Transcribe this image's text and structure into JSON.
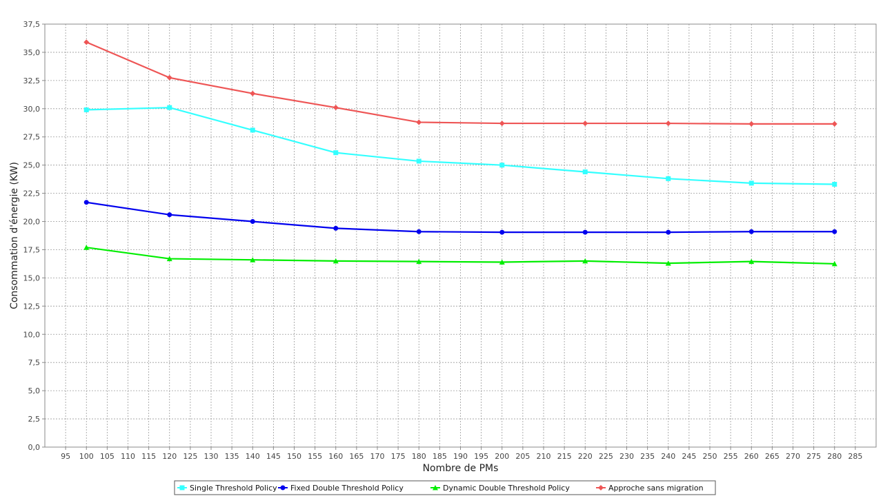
{
  "chart_data": {
    "type": "line",
    "title": "",
    "xlabel": "Nombre de PMs",
    "ylabel": "Consommation d'énergie (KW)",
    "xlim": [
      90,
      290
    ],
    "ylim": [
      0,
      37.5
    ],
    "x_ticks": [
      "95",
      "100",
      "105",
      "110",
      "115",
      "120",
      "125",
      "130",
      "135",
      "140",
      "145",
      "150",
      "155",
      "160",
      "165",
      "170",
      "175",
      "180",
      "185",
      "190",
      "195",
      "200",
      "205",
      "210",
      "215",
      "220",
      "225",
      "230",
      "235",
      "240",
      "245",
      "250",
      "255",
      "260",
      "265",
      "270",
      "275",
      "280",
      "285"
    ],
    "y_ticks": [
      "0,0",
      "2,5",
      "5,0",
      "7,5",
      "10,0",
      "12,5",
      "15,0",
      "17,5",
      "20,0",
      "22,5",
      "25,0",
      "27,5",
      "30,0",
      "32,5",
      "35,0",
      "37,5"
    ],
    "grid": true,
    "legend_position": "bottom-center",
    "x": [
      100,
      120,
      140,
      160,
      180,
      200,
      220,
      240,
      260,
      280
    ],
    "series": [
      {
        "name": "Single Threshold Policy",
        "color": "#33ffff",
        "marker": "square",
        "values": [
          29.9,
          30.1,
          28.1,
          26.1,
          25.35,
          25.0,
          24.4,
          23.8,
          23.4,
          23.3
        ]
      },
      {
        "name": "Fixed Double Threshold Policy",
        "color": "#0000ee",
        "marker": "circle",
        "values": [
          21.7,
          20.6,
          20.0,
          19.4,
          19.1,
          19.05,
          19.05,
          19.05,
          19.1,
          19.1
        ]
      },
      {
        "name": "Dynamic Double Threshold Policy",
        "color": "#00ee00",
        "marker": "triangle",
        "values": [
          17.7,
          16.7,
          16.6,
          16.5,
          16.45,
          16.4,
          16.5,
          16.3,
          16.45,
          16.25
        ]
      },
      {
        "name": "Approche sans migration",
        "color": "#ee5555",
        "marker": "diamond",
        "values": [
          35.9,
          32.75,
          31.35,
          30.1,
          28.8,
          28.7,
          28.7,
          28.7,
          28.65,
          28.65
        ]
      }
    ]
  }
}
